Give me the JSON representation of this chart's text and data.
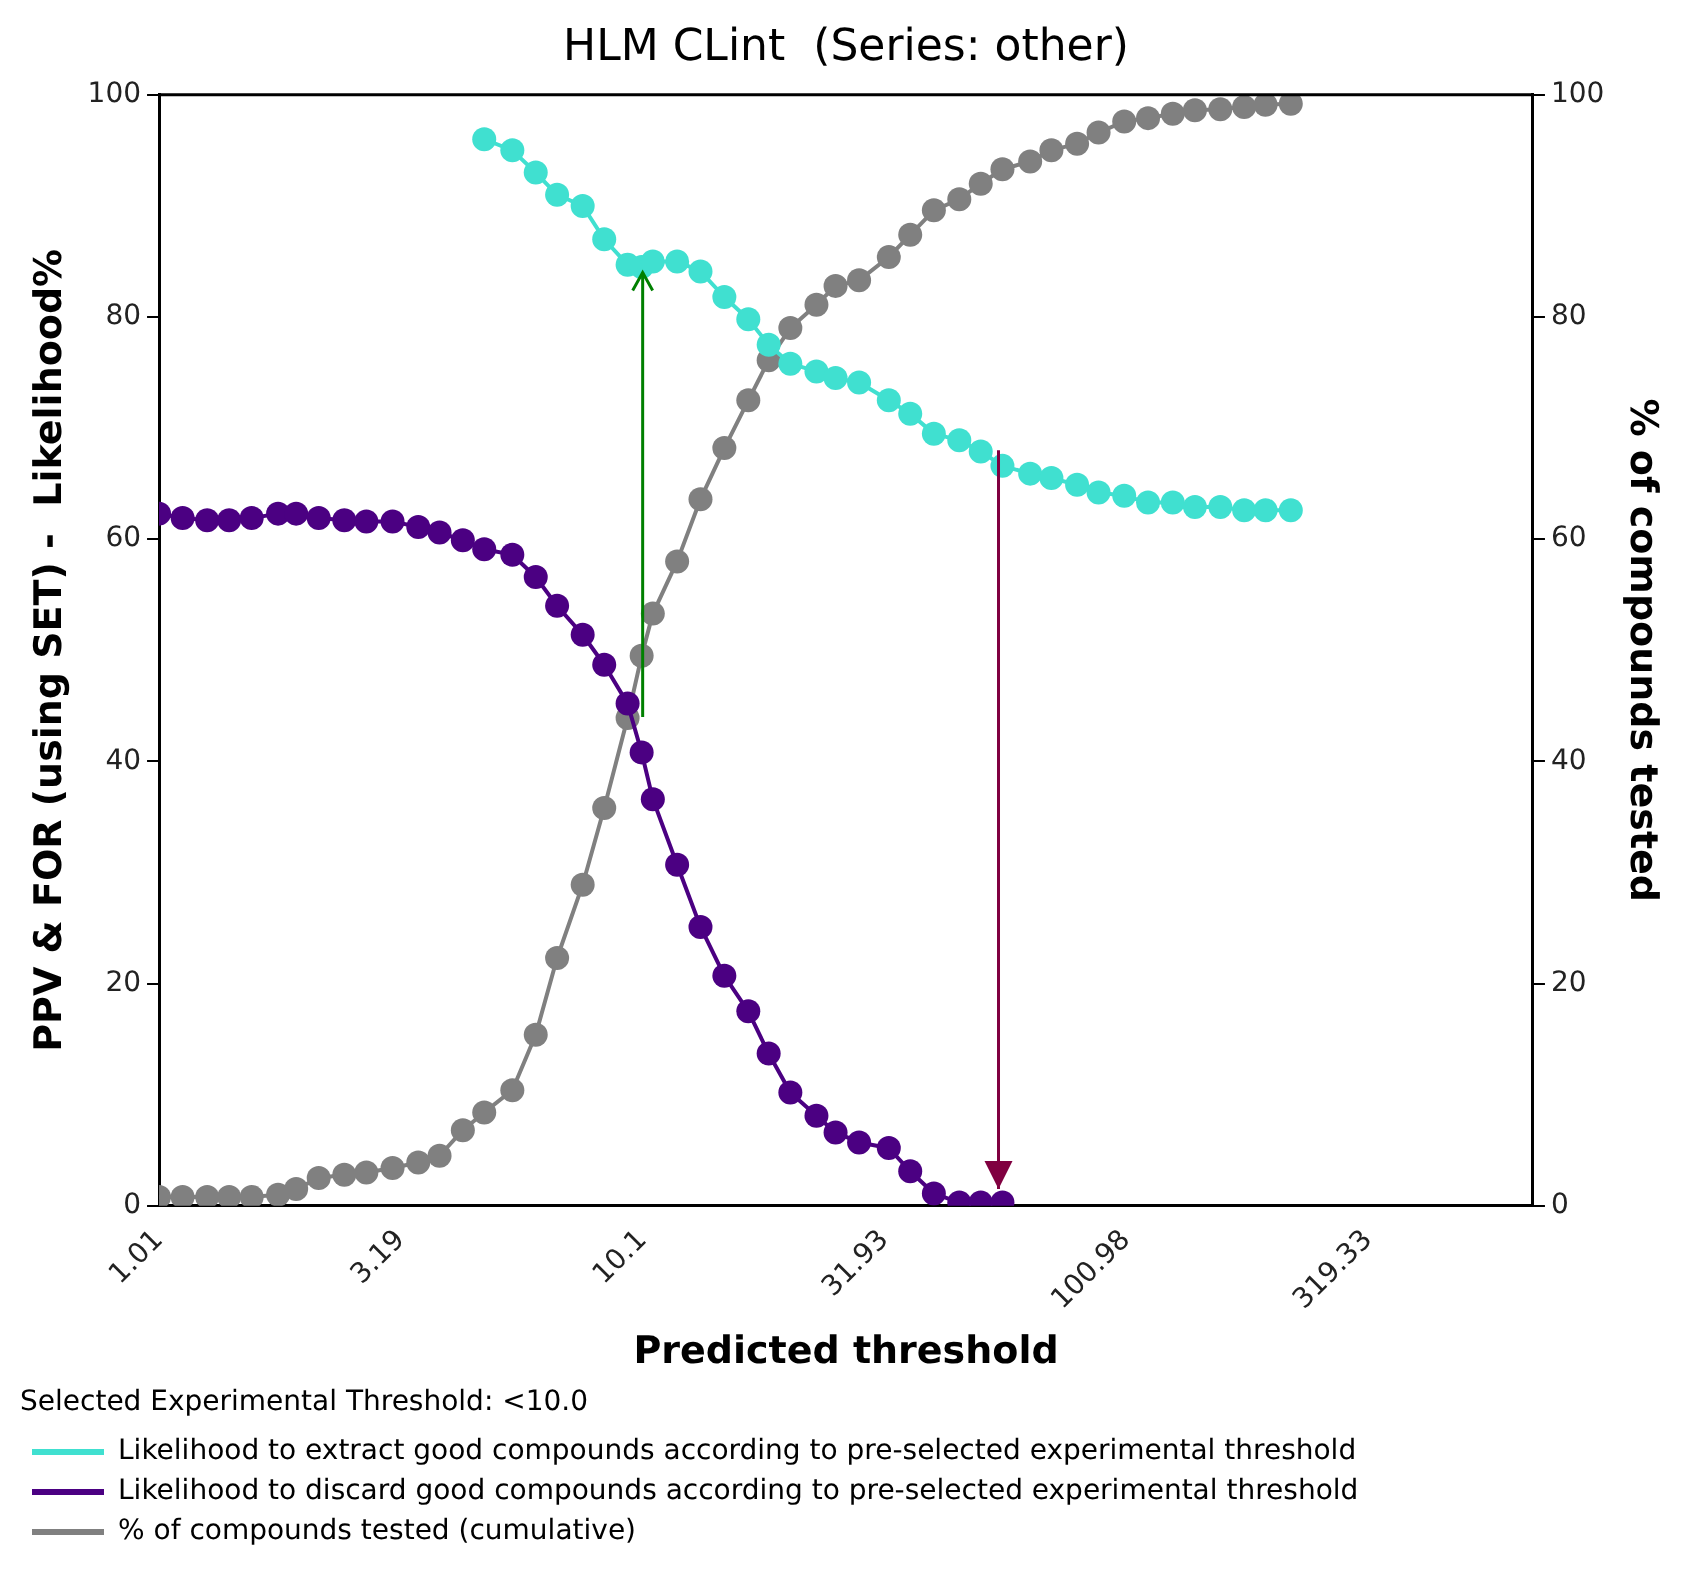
{
  "chart_data": {
    "type": "line",
    "title": "HLM CLint  (Series: other)",
    "xlabel": "Predicted threshold",
    "ylabel": "PPV & FOR (using SET) -  Likelihood%",
    "y2label": "% of compounds tested",
    "legend_title": "Selected Experimental Threshold: <10.0",
    "x": [
      1.01,
      1.13,
      1.27,
      1.41,
      1.57,
      1.78,
      1.94,
      2.16,
      2.44,
      2.71,
      3.07,
      3.47,
      3.84,
      4.29,
      4.75,
      5.43,
      6.07,
      6.72,
      7.59,
      8.41,
      9.4,
      10.05,
      10.6,
      11.9,
      13.3,
      14.9,
      16.7,
      18.4,
      20.4,
      23.1,
      25.3,
      28.3,
      32.6,
      36.1,
      40.4,
      45.6,
      50.5,
      56.0,
      63.9,
      70.7,
      79.9,
      88.5,
      100,
      112,
      126,
      140,
      158,
      177,
      196,
      221
    ],
    "series": [
      {
        "name": "Likelihood to extract good compounds according to pre-selected experimental threshold",
        "color": "#40e0d0",
        "values": [
          null,
          null,
          null,
          null,
          null,
          null,
          null,
          null,
          null,
          null,
          null,
          null,
          null,
          null,
          96,
          95,
          93,
          91,
          90,
          87,
          84.7,
          84.5,
          85,
          85,
          84.1,
          81.8,
          79.8,
          77.5,
          75.8,
          75.1,
          74.5,
          74.1,
          72.5,
          71.3,
          69.5,
          68.9,
          67.9,
          66.6,
          65.9,
          65.5,
          64.9,
          64.2,
          63.9,
          63.3,
          63.3,
          62.9,
          62.9,
          62.6,
          62.6,
          62.6
        ]
      },
      {
        "name": "Likelihood to discard good compounds according to pre-selected experimental threshold",
        "color": "#4b0082",
        "values": [
          62.3,
          61.9,
          61.7,
          61.7,
          61.9,
          62.3,
          62.3,
          61.9,
          61.7,
          61.6,
          61.6,
          61.1,
          60.6,
          59.9,
          59.1,
          58.6,
          56.6,
          54,
          51.4,
          48.7,
          45.2,
          40.8,
          36.6,
          30.7,
          25.1,
          20.7,
          17.5,
          13.7,
          10.2,
          8.1,
          6.6,
          5.7,
          5.2,
          3.1,
          1.1,
          0.3,
          0.3,
          0.3,
          null,
          null,
          null,
          null,
          null,
          null,
          null,
          null,
          null,
          null,
          null,
          null
        ]
      },
      {
        "name": "% of compounds tested (cumulative)",
        "color": "#808080",
        "axis": "y2",
        "values": [
          0.8,
          0.8,
          0.8,
          0.8,
          0.8,
          1,
          1.5,
          2.5,
          2.8,
          3,
          3.4,
          3.9,
          4.5,
          6.8,
          8.4,
          10.4,
          15.4,
          22.3,
          28.9,
          35.8,
          43.9,
          49.5,
          53.3,
          58,
          63.6,
          68.2,
          72.5,
          76.1,
          79,
          81.1,
          82.8,
          83.3,
          85.4,
          87.4,
          89.6,
          90.6,
          92,
          93.3,
          94,
          95,
          95.6,
          96.6,
          97.6,
          97.9,
          98.3,
          98.6,
          98.7,
          98.9,
          99.1,
          99.2
        ]
      }
    ],
    "log": "x",
    "xlim": [
      1.01,
      700
    ],
    "xticks": [
      1.01,
      3.19,
      10.1,
      31.93,
      100.98,
      319.33
    ],
    "ylim": [
      0,
      100
    ],
    "yticks": [
      0,
      20,
      40,
      60,
      80,
      100
    ],
    "y2lim": [
      0,
      100
    ],
    "y2ticks": [
      0,
      20,
      40,
      60,
      80,
      100
    ],
    "grid": false,
    "legend": "bottom",
    "marker": "circle",
    "line_style": "solid"
  }
}
